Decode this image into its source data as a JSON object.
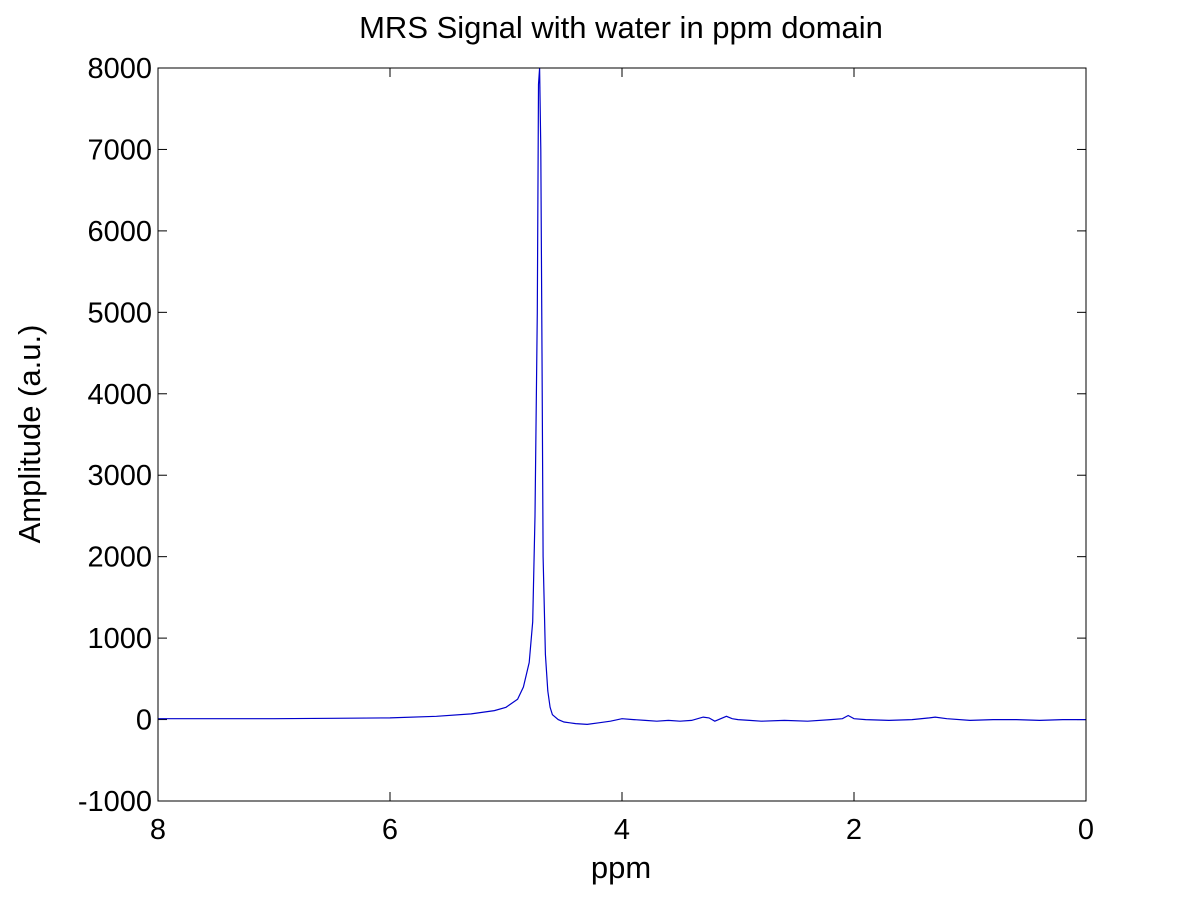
{
  "chart_data": {
    "type": "line",
    "title": "MRS Signal with water in ppm domain",
    "xlabel": "ppm",
    "ylabel": "Amplitude (a.u.)",
    "xlim": [
      8,
      0
    ],
    "ylim": [
      -1000,
      8000
    ],
    "x_reversed": true,
    "xticks": [
      "8",
      "6",
      "4",
      "2",
      "0"
    ],
    "yticks": [
      "-1000",
      "0",
      "1000",
      "2000",
      "3000",
      "4000",
      "5000",
      "6000",
      "7000",
      "8000"
    ],
    "grid": false,
    "box": true,
    "series": [
      {
        "color": "#0000cc",
        "x": [
          8.0,
          7.5,
          7.0,
          6.5,
          6.0,
          5.6,
          5.3,
          5.1,
          5.0,
          4.9,
          4.85,
          4.8,
          4.77,
          4.75,
          4.73,
          4.72,
          4.71,
          4.7,
          4.69,
          4.68,
          4.66,
          4.64,
          4.62,
          4.6,
          4.55,
          4.5,
          4.45,
          4.4,
          4.3,
          4.2,
          4.1,
          4.0,
          3.9,
          3.8,
          3.7,
          3.6,
          3.5,
          3.4,
          3.3,
          3.25,
          3.2,
          3.1,
          3.05,
          3.0,
          2.9,
          2.8,
          2.6,
          2.4,
          2.2,
          2.1,
          2.05,
          2.0,
          1.9,
          1.7,
          1.5,
          1.35,
          1.3,
          1.2,
          1.0,
          0.8,
          0.6,
          0.4,
          0.2,
          0.0
        ],
        "y": [
          10,
          10,
          10,
          15,
          20,
          40,
          70,
          110,
          150,
          250,
          400,
          700,
          1200,
          2500,
          5000,
          7800,
          8000,
          7000,
          4500,
          2000,
          800,
          350,
          150,
          60,
          0,
          -30,
          -40,
          -50,
          -60,
          -40,
          -20,
          10,
          0,
          -10,
          -20,
          -10,
          -20,
          -10,
          30,
          20,
          -20,
          40,
          10,
          0,
          -10,
          -20,
          -10,
          -20,
          0,
          10,
          50,
          10,
          0,
          -10,
          0,
          20,
          30,
          10,
          -10,
          0,
          0,
          -10,
          0,
          0
        ]
      }
    ]
  }
}
